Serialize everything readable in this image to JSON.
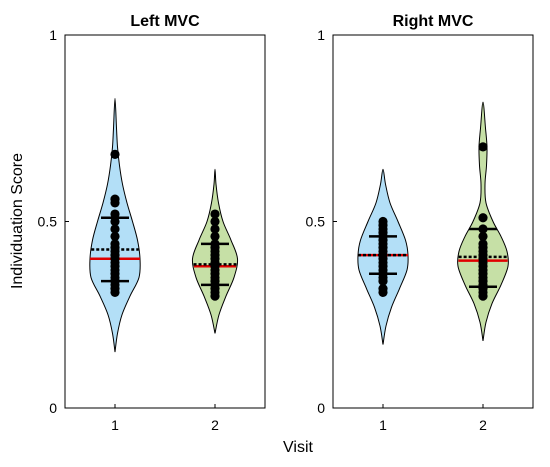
{
  "chart_data": {
    "type": "violin",
    "xlabel": "Visit",
    "ylabel": "Individuation Score",
    "ylim": [
      0,
      1
    ],
    "yticks": [
      "0",
      "0.5",
      "1"
    ],
    "categories": [
      "1",
      "2"
    ],
    "colors": {
      "visit1": "#b3dff7",
      "visit2": "#c6e0a6",
      "median": "#e00000",
      "mean": "#000000",
      "points": "#000000"
    },
    "panels": [
      {
        "title": "Left MVC",
        "violins": [
          {
            "visit": "1",
            "range": [
              0.15,
              0.83
            ],
            "width_profile": [
              [
                0.15,
                0
              ],
              [
                0.2,
                0.05
              ],
              [
                0.25,
                0.14
              ],
              [
                0.3,
                0.3
              ],
              [
                0.35,
                0.48
              ],
              [
                0.4,
                0.5
              ],
              [
                0.45,
                0.45
              ],
              [
                0.5,
                0.35
              ],
              [
                0.55,
                0.24
              ],
              [
                0.6,
                0.15
              ],
              [
                0.65,
                0.09
              ],
              [
                0.7,
                0.05
              ],
              [
                0.75,
                0.03
              ],
              [
                0.83,
                0
              ]
            ],
            "median": 0.4,
            "mean": 0.425,
            "q1": 0.34,
            "q3": 0.51,
            "points": [
              0.31,
              0.32,
              0.33,
              0.34,
              0.35,
              0.36,
              0.37,
              0.38,
              0.39,
              0.4,
              0.41,
              0.42,
              0.43,
              0.44,
              0.46,
              0.48,
              0.5,
              0.52,
              0.55,
              0.56,
              0.68
            ]
          },
          {
            "visit": "2",
            "range": [
              0.2,
              0.64
            ],
            "width_profile": [
              [
                0.2,
                0
              ],
              [
                0.25,
                0.08
              ],
              [
                0.3,
                0.22
              ],
              [
                0.35,
                0.38
              ],
              [
                0.4,
                0.45
              ],
              [
                0.45,
                0.32
              ],
              [
                0.5,
                0.16
              ],
              [
                0.55,
                0.07
              ],
              [
                0.6,
                0.02
              ],
              [
                0.64,
                0
              ]
            ],
            "median": 0.38,
            "mean": 0.385,
            "q1": 0.33,
            "q3": 0.44,
            "points": [
              0.3,
              0.31,
              0.32,
              0.33,
              0.34,
              0.35,
              0.36,
              0.37,
              0.38,
              0.39,
              0.4,
              0.41,
              0.42,
              0.43,
              0.44,
              0.46,
              0.48,
              0.5,
              0.52
            ]
          }
        ]
      },
      {
        "title": "Right MVC",
        "violins": [
          {
            "visit": "1",
            "range": [
              0.17,
              0.64
            ],
            "width_profile": [
              [
                0.17,
                0
              ],
              [
                0.22,
                0.06
              ],
              [
                0.27,
                0.17
              ],
              [
                0.32,
                0.33
              ],
              [
                0.37,
                0.48
              ],
              [
                0.41,
                0.5
              ],
              [
                0.45,
                0.45
              ],
              [
                0.5,
                0.3
              ],
              [
                0.55,
                0.14
              ],
              [
                0.6,
                0.05
              ],
              [
                0.64,
                0
              ]
            ],
            "median": 0.41,
            "mean": 0.41,
            "q1": 0.36,
            "q3": 0.46,
            "points": [
              0.31,
              0.32,
              0.34,
              0.35,
              0.36,
              0.37,
              0.38,
              0.39,
              0.4,
              0.41,
              0.42,
              0.43,
              0.44,
              0.45,
              0.46,
              0.47,
              0.48,
              0.49,
              0.5
            ]
          },
          {
            "visit": "2",
            "range": [
              0.18,
              0.82
            ],
            "width_profile": [
              [
                0.18,
                0
              ],
              [
                0.23,
                0.06
              ],
              [
                0.28,
                0.18
              ],
              [
                0.33,
                0.36
              ],
              [
                0.38,
                0.5
              ],
              [
                0.42,
                0.48
              ],
              [
                0.46,
                0.36
              ],
              [
                0.5,
                0.2
              ],
              [
                0.55,
                0.06
              ],
              [
                0.6,
                0.04
              ],
              [
                0.65,
                0.07
              ],
              [
                0.7,
                0.08
              ],
              [
                0.75,
                0.05
              ],
              [
                0.82,
                0
              ]
            ],
            "median": 0.395,
            "mean": 0.405,
            "q1": 0.325,
            "q3": 0.48,
            "points": [
              0.3,
              0.31,
              0.32,
              0.33,
              0.34,
              0.35,
              0.36,
              0.37,
              0.38,
              0.39,
              0.4,
              0.41,
              0.42,
              0.43,
              0.44,
              0.46,
              0.48,
              0.51,
              0.7
            ]
          }
        ]
      }
    ]
  }
}
